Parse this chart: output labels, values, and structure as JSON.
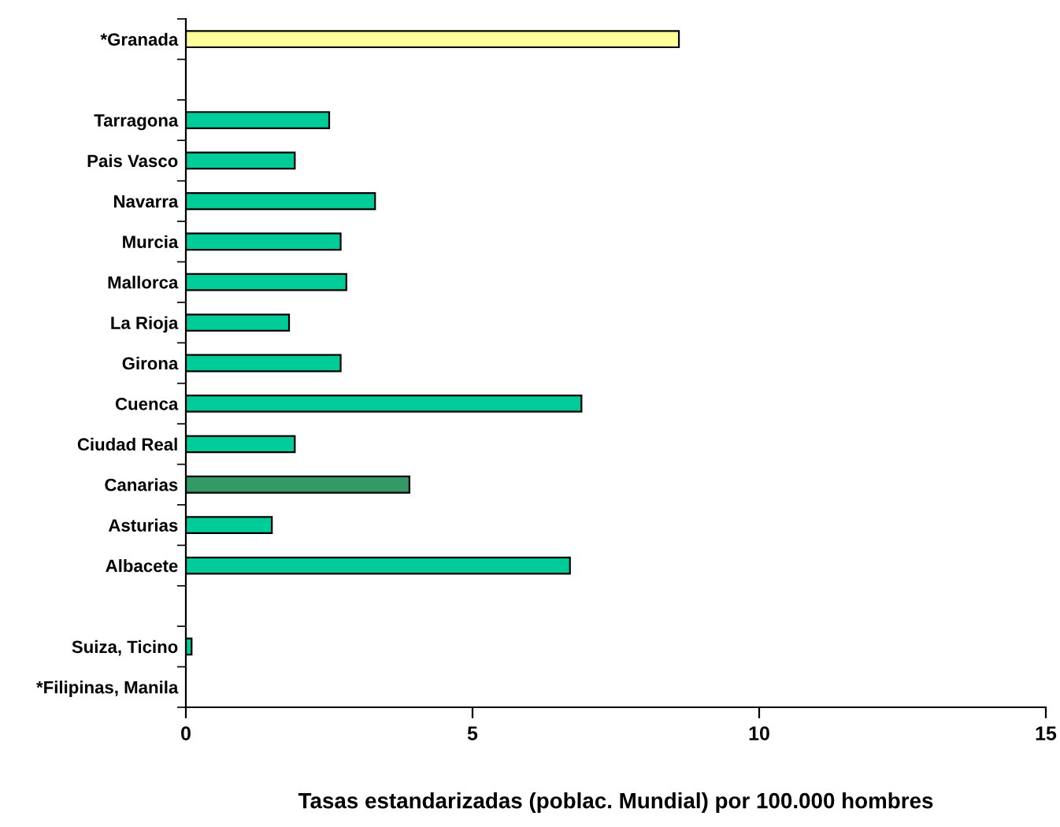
{
  "chart_data": {
    "type": "bar",
    "orientation": "horizontal",
    "xlabel": "Tasas estandarizadas (poblac. Mundial) por 100.000 hombres",
    "categories": [
      "*Granada",
      null,
      "Tarragona",
      "Pais Vasco",
      "Navarra",
      "Murcia",
      "Mallorca",
      "La Rioja",
      "Girona",
      "Cuenca",
      "Ciudad Real",
      "Canarias",
      "Asturias",
      "Albacete",
      null,
      "Suiza, Ticino",
      "*Filipinas, Manila"
    ],
    "values": [
      8.6,
      null,
      2.5,
      1.9,
      3.3,
      2.7,
      2.8,
      1.8,
      2.7,
      6.9,
      1.9,
      3.9,
      1.5,
      6.7,
      null,
      0.1,
      null
    ],
    "colors": [
      "#ffff99",
      null,
      "#00cc99",
      "#00cc99",
      "#00cc99",
      "#00cc99",
      "#00cc99",
      "#00cc99",
      "#00cc99",
      "#00cc99",
      "#00cc99",
      "#339966",
      "#00cc99",
      "#00cc99",
      null,
      "#00cc99",
      null
    ],
    "xlim": [
      0,
      15
    ],
    "xticks": [
      0,
      5,
      10,
      15
    ],
    "grid": false,
    "legend": false
  }
}
